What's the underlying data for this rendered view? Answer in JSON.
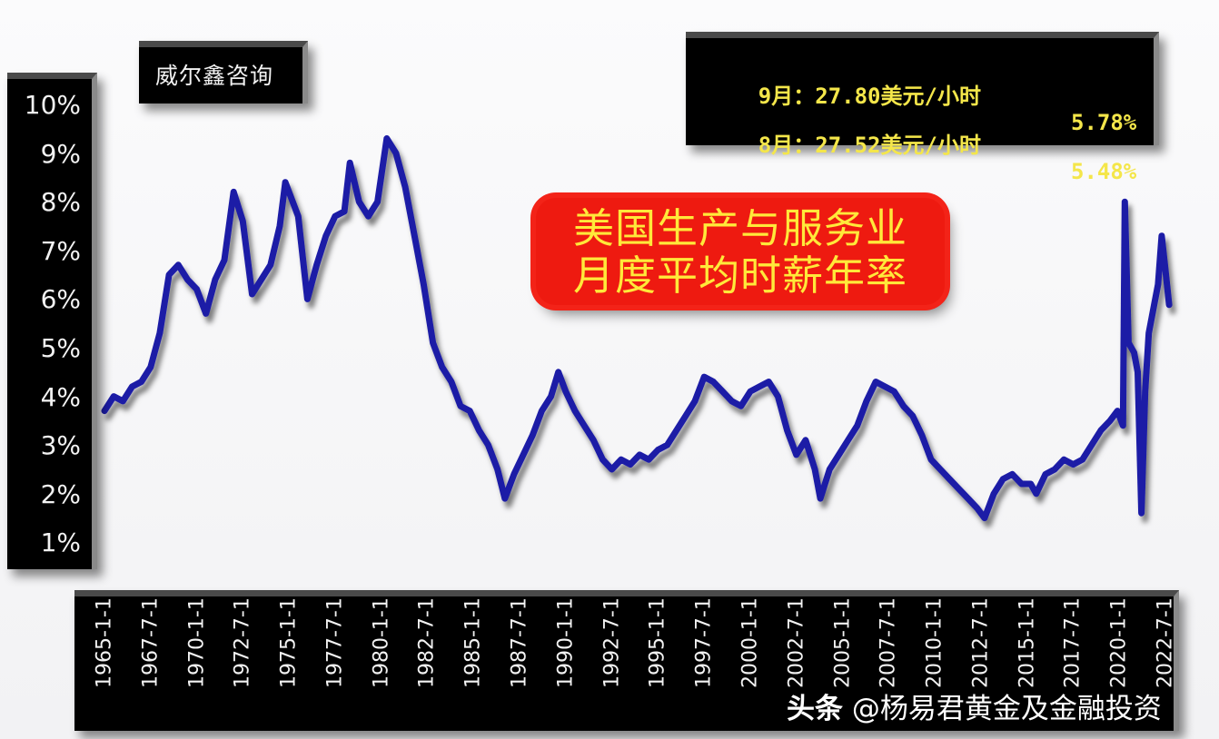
{
  "brand": {
    "label": "威尔鑫咨询"
  },
  "info_box": {
    "rows": [
      {
        "month": "9月：27.80美元/小时",
        "pct": "5.78%"
      },
      {
        "month": "8月：27.52美元/小时",
        "pct": "5.48%"
      }
    ],
    "text_color": "#f4e64a"
  },
  "title": {
    "line1": "美国生产与服务业",
    "line2": "月度平均时薪年率",
    "bg_color": "#ee1a10",
    "text_color": "#ffe93a"
  },
  "watermark": {
    "prefix": "头条",
    "text": "@杨易君黄金及金融投资"
  },
  "y_axis": {
    "ticks": [
      "10%",
      "9%",
      "8%",
      "7%",
      "6%",
      "5%",
      "4%",
      "3%",
      "2%",
      "1%"
    ]
  },
  "x_axis": {
    "ticks": [
      "1965-1-1",
      "1967-7-1",
      "1970-1-1",
      "1972-7-1",
      "1975-1-1",
      "1977-7-1",
      "1980-1-1",
      "1982-7-1",
      "1985-1-1",
      "1987-7-1",
      "1990-1-1",
      "1992-7-1",
      "1995-1-1",
      "1997-7-1",
      "2000-1-1",
      "2002-7-1",
      "2005-1-1",
      "2007-7-1",
      "2010-1-1",
      "2012-7-1",
      "2015-1-1",
      "2017-7-1",
      "2020-1-1",
      "2022-7-1"
    ]
  },
  "chart_data": {
    "type": "line",
    "title": "美国生产与服务业月度平均时薪年率",
    "xlabel": "",
    "ylabel": "",
    "ylim": [
      1,
      10
    ],
    "y_unit": "%",
    "grid": false,
    "line_color": "#1a1aa6",
    "x_tick_labels": [
      "1965-1-1",
      "1967-7-1",
      "1970-1-1",
      "1972-7-1",
      "1975-1-1",
      "1977-7-1",
      "1980-1-1",
      "1982-7-1",
      "1985-1-1",
      "1987-7-1",
      "1990-1-1",
      "1992-7-1",
      "1995-1-1",
      "1997-7-1",
      "2000-1-1",
      "2002-7-1",
      "2005-1-1",
      "2007-7-1",
      "2010-1-1",
      "2012-7-1",
      "2015-1-1",
      "2017-7-1",
      "2020-1-1",
      "2022-7-1"
    ],
    "y_tick_labels": [
      "10%",
      "9%",
      "8%",
      "7%",
      "6%",
      "5%",
      "4%",
      "3%",
      "2%",
      "1%"
    ],
    "series": [
      {
        "name": "平均时薪年率",
        "x": [
          1965.0,
          1965.5,
          1966.0,
          1966.5,
          1967.0,
          1967.5,
          1968.0,
          1968.5,
          1969.0,
          1969.5,
          1970.0,
          1970.5,
          1971.0,
          1971.5,
          1972.0,
          1972.5,
          1973.0,
          1973.5,
          1974.0,
          1974.5,
          1974.8,
          1975.5,
          1976.0,
          1976.5,
          1977.0,
          1977.5,
          1978.0,
          1978.3,
          1978.8,
          1979.3,
          1979.8,
          1980.3,
          1980.8,
          1981.3,
          1981.8,
          1982.3,
          1982.8,
          1983.3,
          1983.8,
          1984.3,
          1984.8,
          1985.3,
          1985.8,
          1986.3,
          1986.7,
          1987.2,
          1987.7,
          1988.2,
          1988.7,
          1989.2,
          1989.6,
          1990.0,
          1990.5,
          1991.0,
          1991.5,
          1992.0,
          1992.5,
          1993.0,
          1993.5,
          1994.0,
          1994.5,
          1995.0,
          1995.5,
          1996.0,
          1996.5,
          1997.0,
          1997.5,
          1998.0,
          1998.5,
          1999.0,
          1999.5,
          2000.0,
          2000.5,
          2001.0,
          2001.5,
          2002.0,
          2002.5,
          2003.0,
          2003.5,
          2003.8,
          2004.3,
          2004.8,
          2005.3,
          2005.8,
          2006.3,
          2006.8,
          2007.3,
          2007.8,
          2008.3,
          2008.8,
          2009.3,
          2009.8,
          2010.3,
          2010.8,
          2011.3,
          2011.8,
          2012.3,
          2012.7,
          2013.2,
          2013.7,
          2014.2,
          2014.7,
          2015.2,
          2015.5,
          2016.0,
          2016.5,
          2017.0,
          2017.5,
          2018.0,
          2018.5,
          2019.0,
          2019.5,
          2019.9,
          2020.2,
          2020.3,
          2020.5,
          2020.8,
          2021.0,
          2021.2,
          2021.4,
          2021.6,
          2021.9,
          2022.1,
          2022.3,
          2022.5,
          2022.7
        ],
        "values": [
          3.6,
          3.9,
          3.8,
          4.1,
          4.2,
          4.5,
          5.2,
          6.4,
          6.6,
          6.3,
          6.1,
          5.6,
          6.3,
          6.7,
          8.1,
          7.5,
          6.0,
          6.3,
          6.6,
          7.4,
          8.3,
          7.6,
          5.9,
          6.6,
          7.2,
          7.6,
          7.7,
          8.7,
          7.9,
          7.6,
          7.9,
          9.2,
          8.9,
          8.2,
          7.2,
          6.2,
          5.0,
          4.5,
          4.2,
          3.7,
          3.6,
          3.2,
          2.9,
          2.4,
          1.8,
          2.3,
          2.7,
          3.1,
          3.6,
          3.9,
          4.4,
          4.0,
          3.6,
          3.3,
          3.0,
          2.6,
          2.4,
          2.6,
          2.5,
          2.7,
          2.6,
          2.8,
          2.9,
          3.2,
          3.5,
          3.8,
          4.3,
          4.2,
          4.0,
          3.8,
          3.7,
          4.0,
          4.1,
          4.2,
          3.9,
          3.2,
          2.7,
          3.0,
          2.4,
          1.8,
          2.4,
          2.7,
          3.0,
          3.3,
          3.8,
          4.2,
          4.1,
          4.0,
          3.7,
          3.5,
          3.1,
          2.6,
          2.4,
          2.2,
          2.0,
          1.8,
          1.6,
          1.4,
          1.9,
          2.2,
          2.3,
          2.1,
          2.1,
          1.9,
          2.3,
          2.4,
          2.6,
          2.5,
          2.6,
          2.9,
          3.2,
          3.4,
          3.6,
          3.3,
          7.9,
          5.0,
          4.8,
          4.4,
          1.5,
          4.0,
          5.2,
          5.8,
          6.2,
          7.2,
          6.5,
          5.78
        ]
      }
    ],
    "latest": {
      "9月": {
        "wage": "27.80美元/小时",
        "yoy": "5.78%"
      },
      "8月": {
        "wage": "27.52美元/小时",
        "yoy": "5.48%"
      }
    }
  }
}
